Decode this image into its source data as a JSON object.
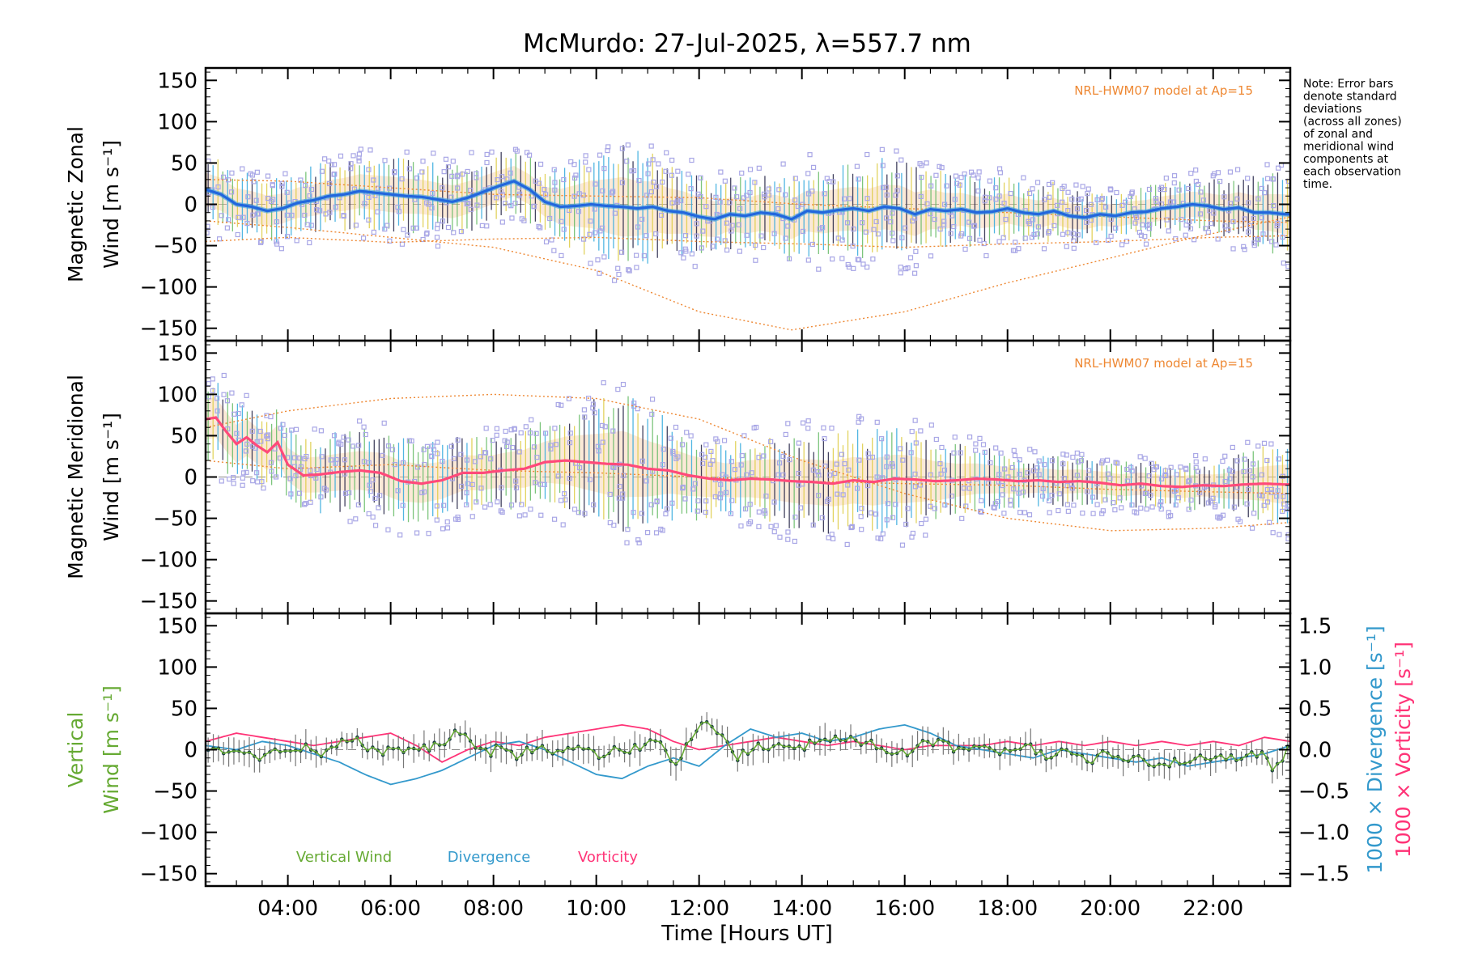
{
  "chart_data": {
    "type": "line",
    "title": "McMurdo: 27-Jul-2025, λ=557.7 nm",
    "xlabel": "Time [Hours UT]",
    "xlim": [
      2.4,
      23.5
    ],
    "xticks": [
      4,
      6,
      8,
      10,
      12,
      14,
      16,
      18,
      20,
      22
    ],
    "xtick_labels": [
      "04:00",
      "06:00",
      "08:00",
      "10:00",
      "12:00",
      "14:00",
      "16:00",
      "18:00",
      "20:00",
      "22:00"
    ],
    "note_lines": [
      "Note: Error bars",
      "denote standard",
      "deviations",
      "(across all zones)",
      "of zonal and",
      "meridional wind",
      "components at",
      "each observation",
      "time."
    ],
    "colors": {
      "zonal": "#2266dd",
      "zonal_light": "#3aa0e0",
      "meridional": "#ff4a7a",
      "model": "#ee8833",
      "scatter": "#a9a7e6",
      "vertical": "#66aa33",
      "divergence": "#3399cc",
      "vorticity": "#ff3377",
      "errorbar": "#222244",
      "vertical_dots": "#1a3a44"
    },
    "panels": [
      {
        "name": "zonal",
        "ylabel_lines": [
          "Magnetic Zonal",
          "Wind [m s⁻¹]"
        ],
        "ylim": [
          -165,
          165
        ],
        "yticks": [
          -150,
          -100,
          -50,
          0,
          50,
          100,
          150
        ],
        "ytick_labels": [
          "−150",
          "−100",
          "−50",
          "0",
          "50",
          "100",
          "150"
        ],
        "model_label": "NRL-HWM07 model at Ap=15",
        "series": [
          {
            "name": "Mean zonal wind",
            "x": [
              2.4,
              2.7,
              3.0,
              3.3,
              3.6,
              3.9,
              4.2,
              4.5,
              4.8,
              5.1,
              5.4,
              5.7,
              6.0,
              6.3,
              6.6,
              6.9,
              7.2,
              7.5,
              7.8,
              8.1,
              8.4,
              8.7,
              9.0,
              9.3,
              9.6,
              9.9,
              10.2,
              10.5,
              10.8,
              11.1,
              11.4,
              11.7,
              12.0,
              12.3,
              12.6,
              12.9,
              13.2,
              13.5,
              13.8,
              14.1,
              14.4,
              14.7,
              15.0,
              15.3,
              15.6,
              15.9,
              16.2,
              16.5,
              16.8,
              17.1,
              17.4,
              17.7,
              18.0,
              18.3,
              18.6,
              18.9,
              19.2,
              19.5,
              19.8,
              20.1,
              20.4,
              20.7,
              21.0,
              21.3,
              21.6,
              21.9,
              22.2,
              22.5,
              22.8,
              23.1,
              23.4
            ],
            "y": [
              18,
              12,
              0,
              -3,
              -8,
              -5,
              2,
              5,
              10,
              12,
              16,
              14,
              12,
              10,
              9,
              6,
              3,
              8,
              15,
              22,
              28,
              18,
              3,
              -3,
              -2,
              0,
              -2,
              -3,
              -5,
              -3,
              -8,
              -10,
              -15,
              -18,
              -12,
              -14,
              -10,
              -12,
              -18,
              -8,
              -10,
              -7,
              -5,
              -8,
              -3,
              -5,
              -12,
              -6,
              -8,
              -6,
              -10,
              -9,
              -5,
              -10,
              -12,
              -8,
              -14,
              -16,
              -12,
              -14,
              -10,
              -9,
              -5,
              -3,
              0,
              -2,
              -6,
              -4,
              -10,
              -10,
              -12
            ]
          },
          {
            "name": "NRL-HWM07 model",
            "x": [
              2.4,
              4.0,
              6.0,
              8.0,
              10.0,
              12.0,
              13.8,
              16.0,
              18.0,
              20.0,
              21.5,
              23.5
            ],
            "y": [
              -20,
              -28,
              -40,
              -52,
              -80,
              -130,
              -152,
              -130,
              -95,
              -65,
              -42,
              -15
            ]
          },
          {
            "name": "NRL-HWM07 model",
            "x": [
              2.4,
              4.0,
              6.0,
              8.0,
              10.0,
              12.0,
              14.0,
              16.0,
              18.0,
              20.0,
              22.0,
              23.5
            ],
            "y": [
              -45,
              -40,
              -46,
              -42,
              -40,
              -45,
              -48,
              -52,
              -48,
              -45,
              -40,
              -38
            ]
          },
          {
            "name": "NRL-HWM07 model",
            "x": [
              2.4,
              4.0,
              6.0,
              8.0,
              10.0,
              12.0,
              14.0,
              16.0,
              18.0,
              20.0,
              22.0,
              23.5
            ],
            "y": [
              30,
              28,
              20,
              12,
              10,
              8,
              0,
              -5,
              -10,
              -15,
              -20,
              -22
            ]
          }
        ]
      },
      {
        "name": "meridional",
        "ylabel_lines": [
          "Magnetic Meridional",
          "Wind [m s⁻¹]"
        ],
        "ylim": [
          -165,
          165
        ],
        "yticks": [
          -150,
          -100,
          -50,
          0,
          50,
          100,
          150
        ],
        "ytick_labels": [
          "−150",
          "−100",
          "−50",
          "0",
          "50",
          "100",
          "150"
        ],
        "model_label": "NRL-HWM07 model at Ap=15",
        "series": [
          {
            "name": "Mean meridional wind",
            "x": [
              2.4,
              2.6,
              2.8,
              3.0,
              3.2,
              3.4,
              3.6,
              3.8,
              4.0,
              4.3,
              4.6,
              5.0,
              5.4,
              5.8,
              6.2,
              6.6,
              7.0,
              7.4,
              7.8,
              8.2,
              8.6,
              9.0,
              9.4,
              9.8,
              10.2,
              10.6,
              11.0,
              11.4,
              11.8,
              12.2,
              12.6,
              13.0,
              13.4,
              13.8,
              14.2,
              14.6,
              15.0,
              15.4,
              15.8,
              16.2,
              16.6,
              17.0,
              17.4,
              17.8,
              18.2,
              18.6,
              19.0,
              19.4,
              19.8,
              20.2,
              20.6,
              21.0,
              21.4,
              21.8,
              22.2,
              22.6,
              23.0,
              23.4
            ],
            "y": [
              70,
              72,
              55,
              40,
              48,
              38,
              30,
              42,
              15,
              2,
              3,
              6,
              8,
              5,
              -5,
              -8,
              -4,
              5,
              5,
              8,
              10,
              18,
              20,
              18,
              16,
              15,
              10,
              8,
              2,
              -2,
              -4,
              -2,
              -3,
              -5,
              -6,
              -8,
              -4,
              -6,
              -2,
              -3,
              -5,
              -4,
              -2,
              -3,
              -5,
              -4,
              -6,
              -5,
              -7,
              -10,
              -8,
              -11,
              -12,
              -10,
              -11,
              -9,
              -8,
              -9
            ]
          },
          {
            "name": "NRL-HWM07 model",
            "x": [
              2.4,
              4.0,
              6.0,
              8.0,
              10.0,
              12.0,
              13.0,
              14.0,
              16.0,
              18.0,
              20.0,
              22.0,
              23.5
            ],
            "y": [
              60,
              80,
              95,
              100,
              95,
              70,
              45,
              20,
              -20,
              -50,
              -65,
              -62,
              -55
            ]
          },
          {
            "name": "NRL-HWM07 model",
            "x": [
              2.4,
              4.0,
              6.0,
              8.0,
              10.0,
              12.0,
              14.0,
              16.0,
              18.0,
              20.0,
              22.0,
              23.5
            ],
            "y": [
              20,
              10,
              15,
              8,
              5,
              0,
              -5,
              -8,
              -10,
              -15,
              -18,
              -20
            ]
          }
        ]
      },
      {
        "name": "vertical",
        "ylabel_lines": [
          "Vertical",
          "Wind [m s⁻¹]"
        ],
        "ylim": [
          -165,
          165
        ],
        "yticks": [
          -150,
          -100,
          -50,
          0,
          50,
          100,
          150
        ],
        "ytick_labels": [
          "−150",
          "−100",
          "−50",
          "0",
          "50",
          "100",
          "150"
        ],
        "y2lim": [
          -1.65,
          1.65
        ],
        "y2ticks": [
          -1.5,
          -1.0,
          -0.5,
          0.0,
          0.5,
          1.0,
          1.5
        ],
        "y2tick_labels": [
          "−1.5",
          "−1.0",
          "−0.5",
          "0.0",
          "0.5",
          "1.0",
          "1.5"
        ],
        "y2label_divergence": "1000 × Divergence [s⁻¹]",
        "y2label_vorticity": "1000 × Vorticity [s⁻¹]",
        "legend": [
          "Vertical Wind",
          "Divergence",
          "Vorticity"
        ],
        "series": [
          {
            "name": "Vertical Wind",
            "axis": "left",
            "x": [
              2.5,
              2.8,
              3.1,
              3.4,
              3.7,
              4.0,
              4.3,
              4.6,
              4.9,
              5.2,
              5.5,
              5.8,
              6.1,
              6.4,
              6.7,
              7.0,
              7.3,
              7.6,
              7.9,
              8.2,
              8.5,
              8.8,
              9.1,
              9.4,
              9.7,
              10.0,
              10.3,
              10.6,
              10.9,
              11.2,
              11.5,
              11.8,
              12.1,
              12.4,
              12.7,
              13.0,
              13.3,
              13.6,
              13.9,
              14.2,
              14.5,
              14.8,
              15.1,
              15.4,
              15.7,
              16.0,
              16.3,
              16.6,
              16.9,
              17.2,
              17.5,
              17.8,
              18.1,
              18.4,
              18.7,
              19.0,
              19.3,
              19.6,
              19.9,
              20.2,
              20.5,
              20.8,
              21.1,
              21.4,
              21.7,
              22.0,
              22.3,
              22.6,
              22.9,
              23.2,
              23.5
            ],
            "y": [
              0,
              -5,
              5,
              -15,
              3,
              -3,
              5,
              -5,
              8,
              15,
              5,
              -3,
              2,
              -5,
              3,
              5,
              20,
              10,
              -5,
              5,
              -8,
              2,
              0,
              -5,
              5,
              -8,
              3,
              -4,
              6,
              10,
              -15,
              5,
              40,
              20,
              -10,
              0,
              5,
              3,
              -2,
              10,
              12,
              15,
              8,
              5,
              0,
              -3,
              5,
              10,
              3,
              -5,
              2,
              0,
              -3,
              5,
              -8,
              -2,
              -10,
              -15,
              -5,
              -8,
              -10,
              -20,
              -15,
              -18,
              -12,
              -8,
              -10,
              -6,
              -5,
              -25,
              5
            ]
          },
          {
            "name": "Divergence",
            "axis": "right",
            "x": [
              2.4,
              3.0,
              3.5,
              4.0,
              4.5,
              5.0,
              5.5,
              6.0,
              6.5,
              7.0,
              7.5,
              8.0,
              8.5,
              9.0,
              9.5,
              10.0,
              10.5,
              11.0,
              11.5,
              12.0,
              12.5,
              13.0,
              13.5,
              14.0,
              14.5,
              15.0,
              15.5,
              16.0,
              16.5,
              17.0,
              17.5,
              18.0,
              18.5,
              19.0,
              19.5,
              20.0,
              20.5,
              21.0,
              21.5,
              22.0,
              22.5,
              23.0,
              23.5
            ],
            "y": [
              0.05,
              0.0,
              0.1,
              0.05,
              -0.05,
              -0.15,
              -0.3,
              -0.42,
              -0.35,
              -0.25,
              -0.1,
              0.05,
              0.1,
              0.0,
              -0.15,
              -0.3,
              -0.35,
              -0.2,
              -0.1,
              -0.2,
              0.05,
              0.25,
              0.15,
              0.2,
              0.1,
              0.15,
              0.25,
              0.3,
              0.2,
              0.05,
              0.0,
              -0.05,
              -0.1,
              0.0,
              -0.05,
              -0.1,
              -0.15,
              -0.1,
              -0.2,
              -0.15,
              -0.1,
              -0.05,
              0.05
            ]
          },
          {
            "name": "Vorticity",
            "axis": "right",
            "x": [
              2.4,
              3.0,
              3.5,
              4.0,
              4.5,
              5.0,
              5.5,
              6.0,
              6.5,
              7.0,
              7.5,
              8.0,
              8.5,
              9.0,
              9.5,
              10.0,
              10.5,
              11.0,
              11.5,
              12.0,
              12.5,
              13.0,
              13.5,
              14.0,
              14.5,
              15.0,
              15.5,
              16.0,
              16.5,
              17.0,
              17.5,
              18.0,
              18.5,
              19.0,
              19.5,
              20.0,
              20.5,
              21.0,
              21.5,
              22.0,
              22.5,
              23.0,
              23.5
            ],
            "y": [
              0.1,
              0.2,
              0.15,
              0.1,
              0.05,
              0.1,
              0.15,
              0.2,
              0.05,
              -0.15,
              0.0,
              0.1,
              0.05,
              0.15,
              0.2,
              0.25,
              0.3,
              0.25,
              0.1,
              0.0,
              0.05,
              0.1,
              0.15,
              0.1,
              0.05,
              0.1,
              0.05,
              0.0,
              0.05,
              0.05,
              0.05,
              0.1,
              0.05,
              0.1,
              0.05,
              0.1,
              0.05,
              0.1,
              0.05,
              0.1,
              0.05,
              0.15,
              0.1
            ]
          }
        ]
      }
    ]
  }
}
